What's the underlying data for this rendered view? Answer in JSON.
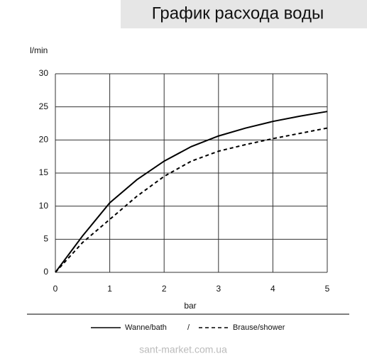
{
  "chart_data": {
    "type": "line",
    "title": "График расхода воды",
    "y_label": "l/min",
    "x_label": "bar",
    "x": [
      0,
      0.5,
      1,
      1.5,
      2,
      2.5,
      3,
      3.5,
      4,
      4.5,
      5
    ],
    "series": [
      {
        "name": "Wanne/bath",
        "color": "#000000",
        "style": "solid",
        "values": [
          0,
          5.5,
          10.5,
          14,
          16.8,
          19,
          20.6,
          21.8,
          22.8,
          23.6,
          24.3
        ]
      },
      {
        "name": "Brause/shower",
        "color": "#000000",
        "style": "dashed",
        "values": [
          0,
          4.5,
          8,
          11.5,
          14.5,
          16.8,
          18.3,
          19.3,
          20.2,
          21,
          21.8
        ]
      }
    ],
    "legend_separator": "/",
    "xlim": [
      0,
      5
    ],
    "xticks": [
      0,
      1,
      2,
      3,
      4,
      5
    ],
    "ylim": [
      0,
      30
    ],
    "yticks": [
      0,
      5,
      10,
      15,
      20,
      25,
      30
    ],
    "grid": true,
    "source": "sant-market.com.ua"
  }
}
